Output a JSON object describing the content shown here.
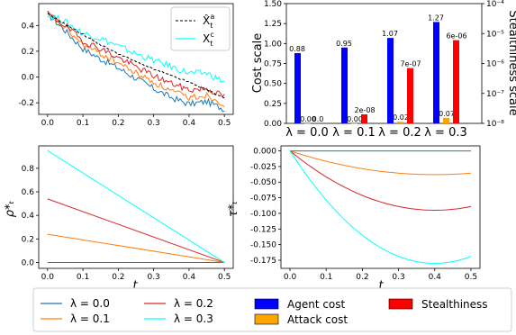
{
  "colors": {
    "lam0": "#1f77b4",
    "lam1": "#ff7f0e",
    "lam2": "#d62728",
    "lam3": "#00ffff",
    "agent": "#0000ff",
    "attack": "#ffa500",
    "stealth": "#ff0000"
  },
  "chart_data": [
    {
      "type": "line",
      "xlim": [
        -0.025,
        0.525
      ],
      "ylim": [
        -0.29,
        0.57
      ],
      "xticks": [
        "0.0",
        "0.1",
        "0.2",
        "0.3",
        "0.4",
        "0.5"
      ],
      "yticks": [
        "-0.2",
        "0.0",
        "0.2",
        "0.4"
      ],
      "legend": {
        "placement": "top-right",
        "entries": [
          "X̂ᵗᵃ",
          "Xᵗᶜ"
        ]
      },
      "reference_path": {
        "style": "dashed",
        "color": "#000000",
        "x": [
          0.0,
          0.05,
          0.1,
          0.15,
          0.2,
          0.25,
          0.3,
          0.35,
          0.4,
          0.45,
          0.5
        ],
        "y": [
          0.49,
          0.41,
          0.33,
          0.25,
          0.18,
          0.12,
          0.06,
          0.01,
          -0.04,
          -0.1,
          -0.16
        ]
      },
      "attack_paths": [
        {
          "lambda": "0.0",
          "y": [
            0.49,
            0.36,
            0.22,
            0.14,
            0.07,
            -0.01,
            -0.09,
            -0.16,
            -0.21,
            -0.19,
            -0.25
          ]
        },
        {
          "lambda": "0.1",
          "y": [
            0.49,
            0.38,
            0.25,
            0.18,
            0.11,
            0.03,
            -0.04,
            -0.11,
            -0.16,
            -0.14,
            -0.21
          ]
        },
        {
          "lambda": "0.2",
          "y": [
            0.49,
            0.4,
            0.28,
            0.22,
            0.15,
            0.08,
            0.01,
            -0.05,
            -0.1,
            -0.09,
            -0.15
          ]
        },
        {
          "lambda": "0.3",
          "y": [
            0.49,
            0.43,
            0.34,
            0.3,
            0.24,
            0.18,
            0.13,
            0.08,
            0.03,
            0.03,
            -0.04
          ]
        }
      ]
    },
    {
      "type": "bar",
      "categories": [
        "λ = 0.0",
        "λ = 0.1",
        "λ = 0.2",
        "λ = 0.3"
      ],
      "ylabel": "Cost scale",
      "ylabel_right": "Stealthiness scale",
      "ylim": [
        0,
        1.5
      ],
      "yticks": [
        "0.00",
        "0.25",
        "0.50",
        "0.75",
        "1.00",
        "1.25",
        "1.50"
      ],
      "right_axis": {
        "scale": "log",
        "ylim": [
          1e-08,
          0.0001
        ],
        "yticks": [
          "10⁻⁸",
          "10⁻⁷",
          "10⁻⁶",
          "10⁻⁵",
          "10⁻⁴"
        ]
      },
      "series": [
        {
          "name": "Agent cost",
          "values": [
            0.88,
            0.95,
            1.07,
            1.27
          ],
          "labels": [
            "0.88",
            "0.95",
            "1.07",
            "1.27"
          ]
        },
        {
          "name": "Attack cost",
          "values": [
            0.0,
            0.0,
            0.02,
            0.07
          ],
          "labels": [
            "0.00",
            "0.00",
            "0.02",
            "0.07"
          ]
        },
        {
          "name": "Stealthiness",
          "values": [
            0,
            2e-08,
            7e-07,
            6e-06
          ],
          "labels": [
            "0.0",
            "2e-08",
            "7e-07",
            "6e-06"
          ]
        }
      ]
    },
    {
      "type": "line",
      "xlabel": "t",
      "ylabel": "ρ*ₜ",
      "xlim": [
        -0.025,
        0.525
      ],
      "ylim": [
        -0.05,
        0.99
      ],
      "xticks": [
        "0.0",
        "0.1",
        "0.2",
        "0.3",
        "0.4",
        "0.5"
      ],
      "yticks": [
        "0.0",
        "0.2",
        "0.4",
        "0.6",
        "0.8"
      ],
      "series": [
        {
          "lambda": "0.0",
          "x": [
            0,
            0.5
          ],
          "y": [
            0.0,
            0.0
          ]
        },
        {
          "lambda": "0.1",
          "x": [
            0,
            0.5
          ],
          "y": [
            0.24,
            0.0
          ]
        },
        {
          "lambda": "0.2",
          "x": [
            0,
            0.5
          ],
          "y": [
            0.54,
            0.0
          ]
        },
        {
          "lambda": "0.3",
          "x": [
            0,
            0.5
          ],
          "y": [
            0.95,
            0.0
          ]
        }
      ]
    },
    {
      "type": "line",
      "xlabel": "t",
      "ylabel": "τ*ₜ",
      "xlim": [
        -0.025,
        0.525
      ],
      "ylim": [
        -0.188,
        0.008
      ],
      "xticks": [
        "0.0",
        "0.1",
        "0.2",
        "0.3",
        "0.4",
        "0.5"
      ],
      "yticks": [
        "0.000",
        "-0.025",
        "-0.050",
        "-0.075",
        "-0.100",
        "-0.125",
        "-0.150",
        "-0.175"
      ],
      "series": [
        {
          "lambda": "0.0",
          "a": 0.0
        },
        {
          "lambda": "0.1",
          "a": -0.038
        },
        {
          "lambda": "0.2",
          "a": -0.095
        },
        {
          "lambda": "0.3",
          "a": -0.18
        }
      ]
    }
  ],
  "legend": {
    "lines": [
      {
        "label": "λ = 0.0",
        "key": "lam0"
      },
      {
        "label": "λ = 0.1",
        "key": "lam1"
      },
      {
        "label": "λ = 0.2",
        "key": "lam2"
      },
      {
        "label": "λ = 0.3",
        "key": "lam3"
      }
    ],
    "bars": [
      {
        "label": "Agent cost",
        "key": "agent"
      },
      {
        "label": "Attack cost",
        "key": "attack"
      },
      {
        "label": "Stealthiness",
        "key": "stealth"
      }
    ]
  }
}
